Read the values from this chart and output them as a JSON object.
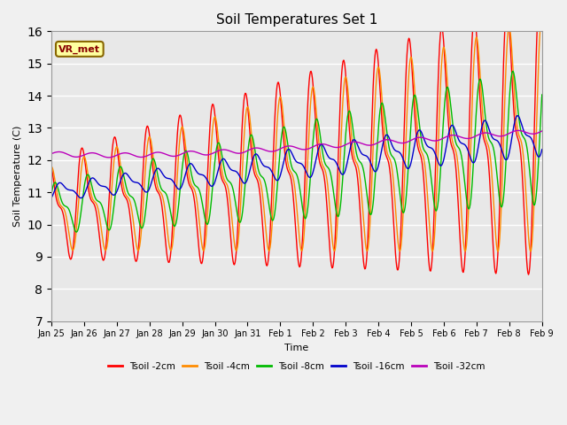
{
  "title": "Soil Temperatures Set 1",
  "xlabel": "Time",
  "ylabel": "Soil Temperature (C)",
  "ylim": [
    7.0,
    16.0
  ],
  "yticks": [
    7.0,
    8.0,
    9.0,
    10.0,
    11.0,
    12.0,
    13.0,
    14.0,
    15.0,
    16.0
  ],
  "xtick_labels": [
    "Jan 25",
    "Jan 26",
    "Jan 27",
    "Jan 28",
    "Jan 29",
    "Jan 30",
    "Jan 31",
    "Feb 1",
    "Feb 2",
    "Feb 3",
    "Feb 4",
    "Feb 5",
    "Feb 6",
    "Feb 7",
    "Feb 8",
    "Feb 9"
  ],
  "series_colors": [
    "#FF0000",
    "#FF8C00",
    "#00BB00",
    "#0000CC",
    "#BB00BB"
  ],
  "series_labels": [
    "Tsoil -2cm",
    "Tsoil -4cm",
    "Tsoil -8cm",
    "Tsoil -16cm",
    "Tsoil -32cm"
  ],
  "legend_label": "VR_met",
  "fig_facecolor": "#F0F0F0",
  "ax_facecolor": "#E8E8E8",
  "grid_color": "#FFFFFF",
  "n_points": 768,
  "title_fontsize": 11
}
